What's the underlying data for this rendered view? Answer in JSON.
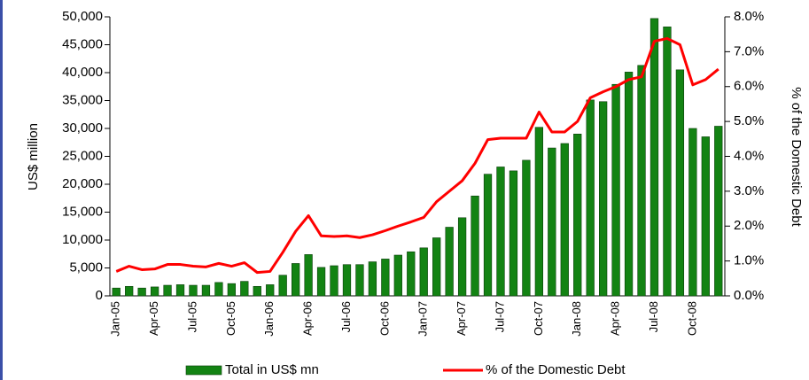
{
  "chart_data": {
    "type": "bar-line",
    "y_label": "US$ million",
    "y2_label": "% of the Domestic Debt",
    "categories": [
      "Jan-05",
      null,
      null,
      "Apr-05",
      null,
      null,
      "Jul-05",
      null,
      null,
      "Oct-05",
      null,
      null,
      "Jan-06",
      null,
      null,
      "Apr-06",
      null,
      null,
      "Jul-06",
      null,
      null,
      "Oct-06",
      null,
      null,
      "Jan-07",
      null,
      null,
      "Apr-07",
      null,
      null,
      "Jul-07",
      null,
      null,
      "Oct-07",
      null,
      null,
      "Jan-08",
      null,
      null,
      "Apr-08",
      null,
      null,
      "Jul-08",
      null,
      null,
      "Oct-08",
      null,
      null
    ],
    "series": [
      {
        "name": "Total in US$ mn",
        "type": "bar",
        "color": "#138313",
        "values": [
          1400,
          1700,
          1400,
          1600,
          1900,
          2000,
          1900,
          1900,
          2400,
          2200,
          2600,
          1700,
          2000,
          3700,
          5800,
          7400,
          5100,
          5400,
          5600,
          5600,
          6100,
          6600,
          7300,
          7900,
          8600,
          10400,
          12300,
          14000,
          17900,
          21800,
          23100,
          22400,
          24300,
          30200,
          26500,
          27300,
          29000,
          35100,
          34800,
          37900,
          40100,
          41300,
          49700,
          48200,
          40500,
          30000,
          28500,
          30400
        ]
      },
      {
        "name": "% of the Domestic Debt",
        "type": "line",
        "axis": "y2",
        "color": "#ff0000",
        "values": [
          0.7,
          0.85,
          0.75,
          0.77,
          0.9,
          0.9,
          0.85,
          0.83,
          0.93,
          0.85,
          0.95,
          0.67,
          0.7,
          1.25,
          1.85,
          2.3,
          1.72,
          1.7,
          1.72,
          1.67,
          1.75,
          1.87,
          2.0,
          2.12,
          2.25,
          2.7,
          3.0,
          3.3,
          3.8,
          4.48,
          4.52,
          4.52,
          4.52,
          5.27,
          4.7,
          4.7,
          5.0,
          5.68,
          5.85,
          6.0,
          6.2,
          6.28,
          7.3,
          7.38,
          7.2,
          6.05,
          6.2,
          6.5
        ]
      }
    ],
    "ylim": [
      0,
      50000
    ],
    "yticks": [
      0,
      {
        "value": 5000,
        "label": "5,000"
      },
      {
        "value": 10000,
        "label": "10,000"
      },
      {
        "value": 15000,
        "label": "15,000"
      },
      {
        "value": 20000,
        "label": "20,000"
      },
      {
        "value": 25000,
        "label": "25,000"
      },
      {
        "value": 30000,
        "label": "30,000"
      },
      {
        "value": 35000,
        "label": "35,000"
      },
      {
        "value": 40000,
        "label": "40,000"
      },
      {
        "value": 45000,
        "label": "45,000"
      },
      {
        "value": 50000,
        "label": "50,000"
      }
    ],
    "y2lim": [
      0,
      8
    ],
    "y2ticks": [
      {
        "value": 0,
        "label": "0.0%"
      },
      {
        "value": 1,
        "label": "1.0%"
      },
      {
        "value": 2,
        "label": "2.0%"
      },
      {
        "value": 3,
        "label": "3.0%"
      },
      {
        "value": 4,
        "label": "4.0%"
      },
      {
        "value": 5,
        "label": "5.0%"
      },
      {
        "value": 6,
        "label": "6.0%"
      },
      {
        "value": 7,
        "label": "7.0%"
      },
      {
        "value": 8,
        "label": "8.0%"
      }
    ],
    "grid": false,
    "legend": "bottom"
  }
}
